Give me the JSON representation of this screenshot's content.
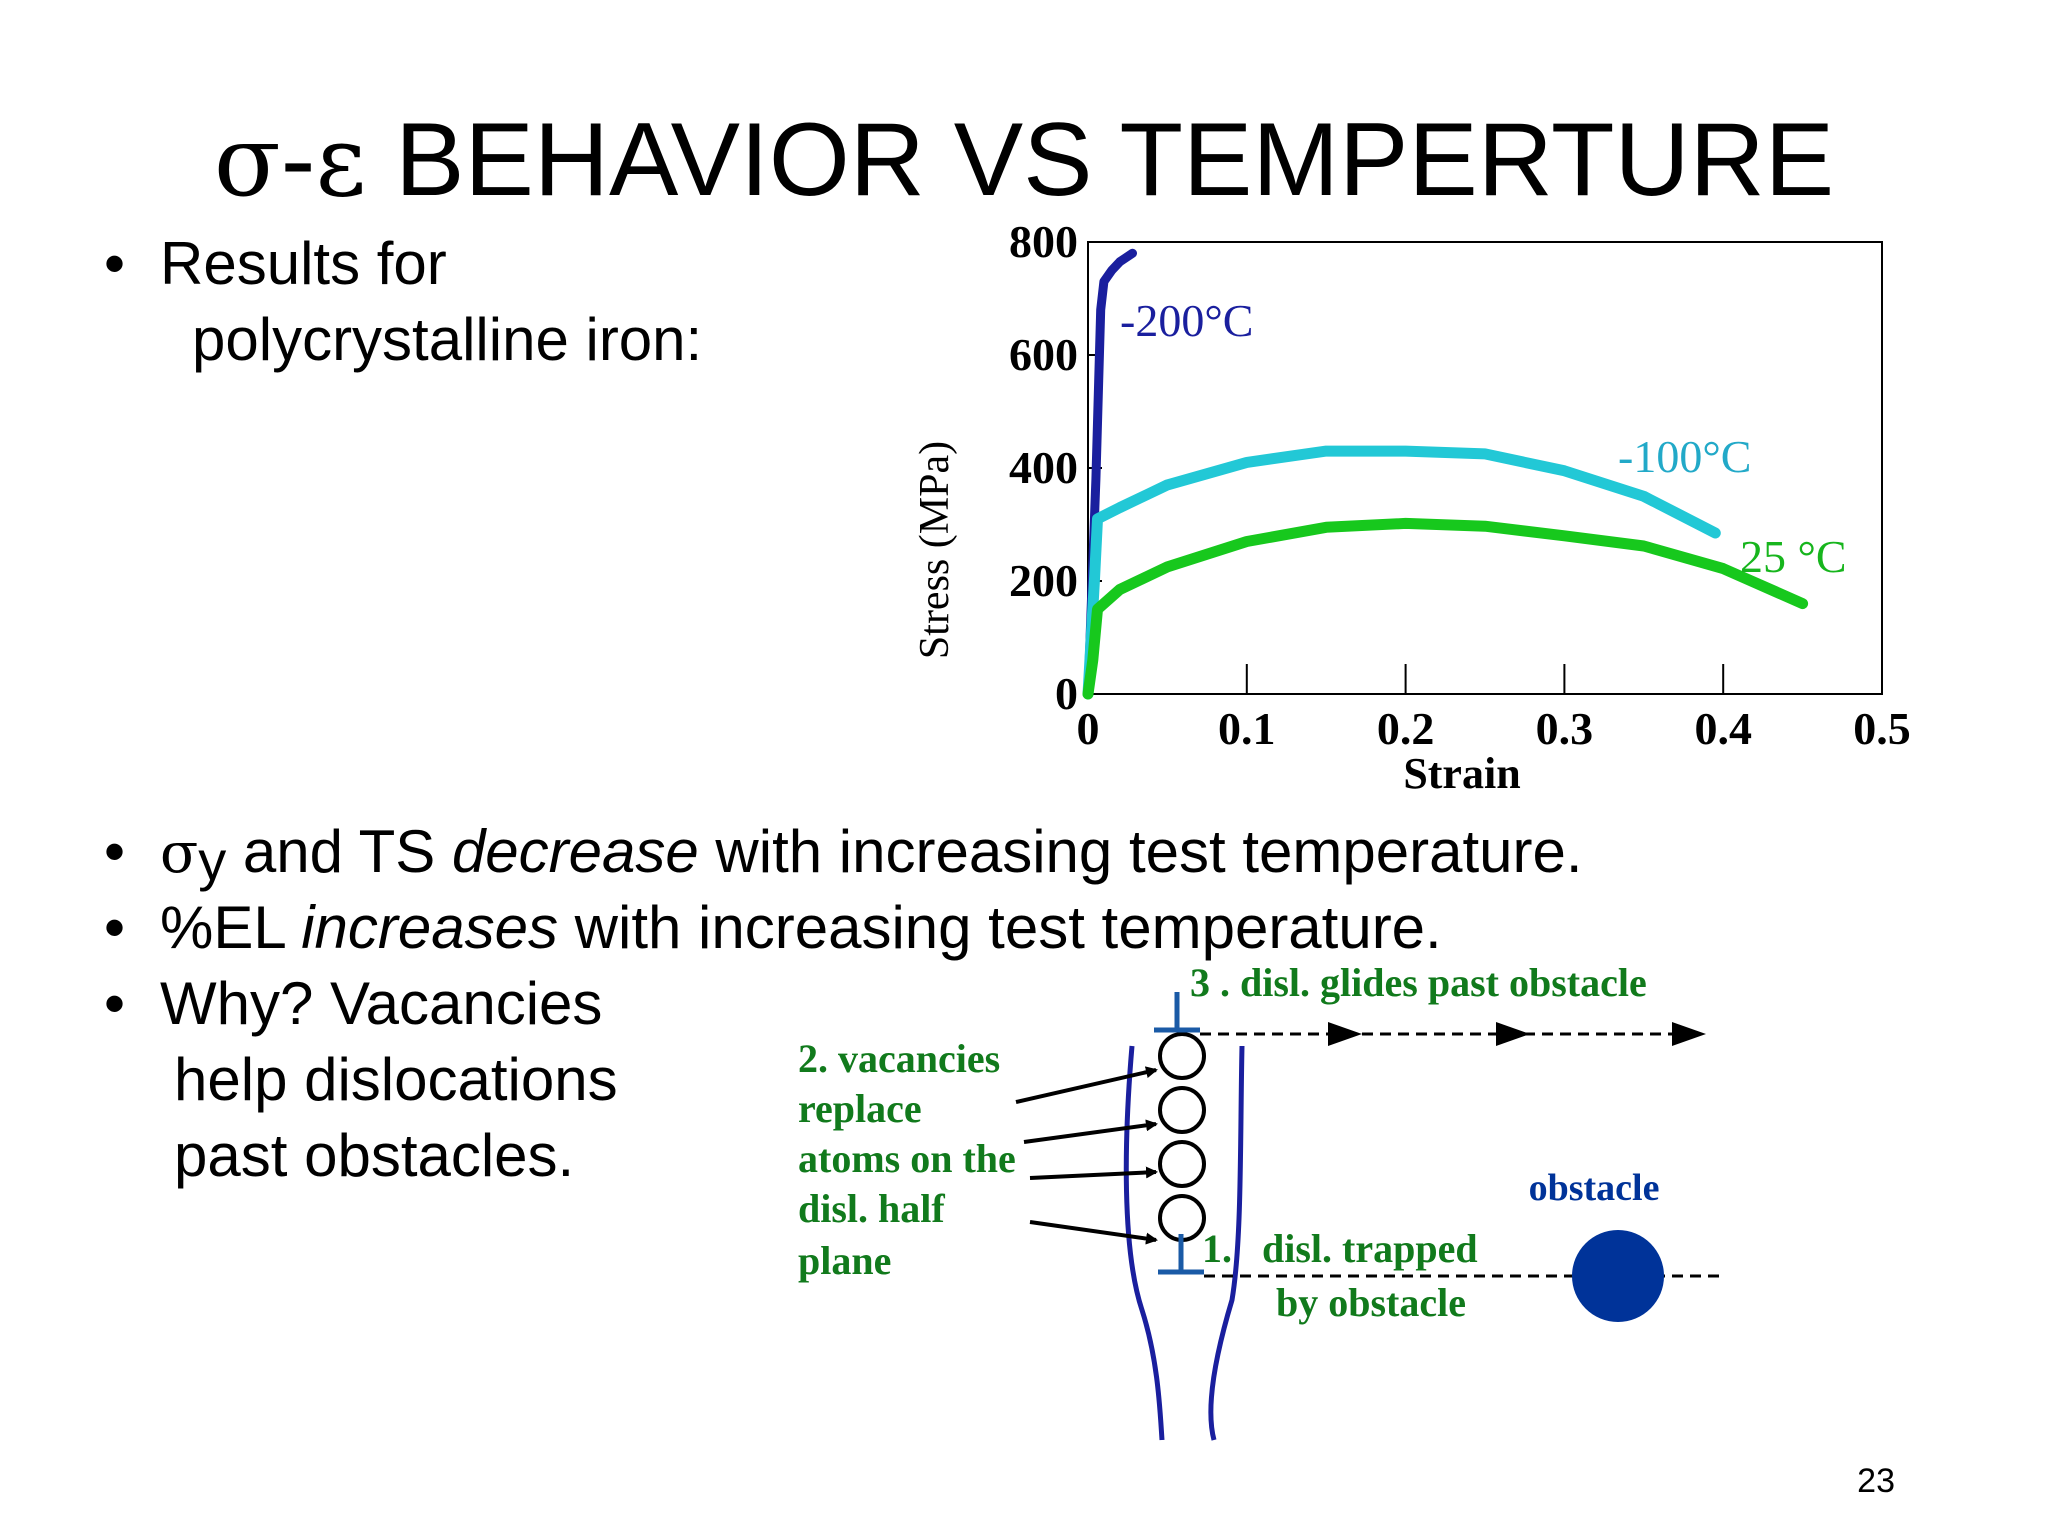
{
  "title": {
    "sigma": "σ",
    "dash": "-",
    "epsilon": "ε",
    "text": " BEHAVIOR VS TEMPERTURE"
  },
  "bullets": {
    "results_line1": "Results for",
    "results_line2": "polycrystalline iron:",
    "b2_sigma": "σ",
    "b2_sub": "y",
    "b2_pre": " and TS ",
    "b2_em": "decrease",
    "b2_post": " with increasing test temperature.",
    "b3_pre": "%EL ",
    "b3_em": "increases",
    "b3_post": " with increasing test temperature.",
    "why_line1": "Why?  Vacancies",
    "why_line2": "help dislocations",
    "why_line3": "past obstacles."
  },
  "chart_data": {
    "type": "line",
    "xlabel": "Strain",
    "ylabel": "Stress (MPa)",
    "xlim": [
      0,
      0.5
    ],
    "ylim": [
      0,
      800
    ],
    "x_ticks": [
      "0",
      "0.1",
      "0.2",
      "0.3",
      "0.4",
      "0.5"
    ],
    "y_ticks": [
      "0",
      "200",
      "400",
      "600",
      "800"
    ],
    "series": [
      {
        "name": "-200°C",
        "color": "#1a1f9e",
        "points": [
          [
            0,
            0
          ],
          [
            0.005,
            380
          ],
          [
            0.008,
            680
          ],
          [
            0.01,
            730
          ],
          [
            0.015,
            750
          ],
          [
            0.02,
            765
          ],
          [
            0.028,
            780
          ]
        ]
      },
      {
        "name": "-100°C",
        "color": "#22c8d6",
        "points": [
          [
            0,
            0
          ],
          [
            0.004,
            200
          ],
          [
            0.006,
            310
          ],
          [
            0.02,
            330
          ],
          [
            0.05,
            370
          ],
          [
            0.1,
            410
          ],
          [
            0.15,
            430
          ],
          [
            0.2,
            430
          ],
          [
            0.25,
            425
          ],
          [
            0.3,
            395
          ],
          [
            0.35,
            350
          ],
          [
            0.395,
            285
          ]
        ]
      },
      {
        "name": "25 °C",
        "color": "#17c81d",
        "points": [
          [
            0,
            0
          ],
          [
            0.003,
            60
          ],
          [
            0.006,
            150
          ],
          [
            0.02,
            185
          ],
          [
            0.05,
            225
          ],
          [
            0.1,
            270
          ],
          [
            0.15,
            295
          ],
          [
            0.2,
            302
          ],
          [
            0.25,
            297
          ],
          [
            0.3,
            280
          ],
          [
            0.35,
            262
          ],
          [
            0.4,
            222
          ],
          [
            0.45,
            160
          ]
        ]
      }
    ]
  },
  "diagram": {
    "label3": "3 .  disl. glides past obstacle",
    "label2_line1": "2. vacancies",
    "label2_line2": "replace",
    "label2_line3": "atoms on the",
    "label2_line4": "disl. half",
    "label2_line5": "plane",
    "label1_num": "1.",
    "label1_line1": "disl. trapped",
    "label1_line2": "by obstacle",
    "obstacle_label": "obstacle",
    "obstacle_color": "#003399",
    "label_color": "#117a1c",
    "line_color": "#1a1f9e"
  },
  "page_number": "23"
}
